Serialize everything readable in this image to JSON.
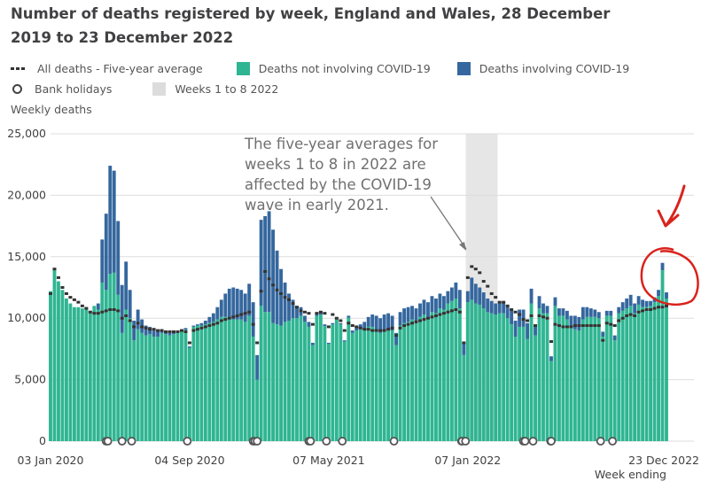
{
  "title": "Number of deaths registered by week, England and Wales, 28 December 2019 to 23 December 2022",
  "legend": {
    "average": "All deaths - Five-year average",
    "non_covid": "Deaths not involving COVID-19",
    "covid": "Deaths involving COVID-19",
    "bank_holidays": "Bank holidays",
    "weeks_band": "Weeks 1 to 8 2022"
  },
  "colors": {
    "non_covid": "#2fb592",
    "covid": "#35679e",
    "average": "#333333",
    "band": "#e6e6e6",
    "annotation_red": "#d9231c"
  },
  "chart_data": {
    "type": "bar",
    "stacked": true,
    "title": "Number of deaths registered by week, England and Wales, 28 December 2019 to 23 December 2022",
    "ylabel": "Weekly deaths",
    "xlabel": "Week ending",
    "ylim": [
      0,
      25000
    ],
    "yticks": [
      0,
      5000,
      10000,
      15000,
      20000,
      25000
    ],
    "ytick_labels": [
      "0",
      "5,000",
      "10,000",
      "15,000",
      "20,000",
      "25,000"
    ],
    "start_week_ending": "2020-01-03",
    "end_week_ending": "2022-12-23",
    "xticks": [
      {
        "label": "03 Jan 2020",
        "week_index": 0
      },
      {
        "label": "04 Sep 2020",
        "week_index": 35
      },
      {
        "label": "07 May 2021",
        "week_index": 70
      },
      {
        "label": "07 Jan 2022",
        "week_index": 105
      },
      {
        "label": "23 Dec 2022",
        "week_index": 155
      }
    ],
    "unit": "thousands of deaths",
    "total_deaths": [
      12.2,
      14.0,
      13.0,
      12.3,
      11.6,
      11.2,
      10.9,
      10.9,
      10.8,
      10.9,
      10.6,
      11.0,
      11.2,
      16.4,
      18.5,
      22.4,
      22.0,
      17.9,
      12.7,
      14.6,
      12.3,
      9.8,
      10.7,
      9.9,
      9.4,
      9.3,
      9.0,
      8.9,
      9.1,
      8.9,
      8.8,
      8.9,
      9.0,
      9.1,
      9.2,
      7.7,
      9.4,
      9.5,
      9.6,
      9.8,
      10.1,
      10.4,
      10.9,
      11.5,
      12.0,
      12.4,
      12.5,
      12.4,
      12.3,
      12.0,
      12.8,
      11.3,
      7.0,
      18.0,
      18.3,
      18.7,
      17.2,
      15.5,
      14.0,
      12.9,
      12.0,
      11.5,
      11.0,
      10.9,
      10.2,
      9.7,
      8.0,
      10.4,
      10.5,
      9.5,
      8.0,
      9.6,
      10.0,
      9.6,
      8.2,
      10.2,
      9.0,
      9.3,
      9.5,
      9.7,
      10.1,
      10.3,
      10.2,
      10.0,
      10.3,
      10.4,
      10.2,
      8.8,
      10.5,
      10.8,
      10.9,
      11.0,
      10.8,
      11.2,
      11.5,
      11.3,
      11.8,
      11.6,
      12.0,
      11.8,
      12.2,
      12.5,
      12.9,
      12.3,
      8.0,
      12.2,
      13.3,
      12.8,
      12.5,
      12.1,
      11.6,
      11.4,
      11.2,
      11.2,
      11.3,
      11.0,
      10.7,
      9.8,
      10.7,
      10.7,
      9.6,
      12.4,
      9.4,
      11.8,
      11.2,
      11.0,
      6.9,
      11.7,
      10.8,
      10.8,
      10.6,
      10.2,
      10.2,
      10.1,
      10.9,
      10.9,
      10.8,
      10.7,
      10.5,
      8.9,
      10.6,
      10.6,
      8.6,
      10.9,
      11.3,
      11.6,
      11.9,
      11.2,
      11.8,
      11.5,
      11.4,
      11.4,
      11.7,
      12.3,
      14.5,
      12.1
    ],
    "series": [
      {
        "name": "Deaths involving COVID-19",
        "values": [
          0,
          0,
          0,
          0,
          0,
          0,
          0,
          0,
          0,
          0,
          0,
          0,
          0.5,
          3.5,
          6.2,
          8.8,
          8.3,
          6.0,
          3.9,
          3.9,
          2.3,
          1.6,
          1.6,
          1.1,
          0.8,
          0.6,
          0.5,
          0.4,
          0.3,
          0.2,
          0.2,
          0.2,
          0.2,
          0.2,
          0.15,
          0.1,
          0.1,
          0.1,
          0.2,
          0.3,
          0.5,
          0.7,
          1.0,
          1.4,
          1.9,
          2.3,
          2.6,
          2.5,
          2.4,
          2.3,
          2.6,
          2.8,
          2.0,
          7.0,
          7.8,
          8.2,
          7.6,
          6.0,
          4.6,
          3.2,
          2.2,
          1.5,
          1.0,
          0.7,
          0.5,
          0.4,
          0.2,
          0.2,
          0.2,
          0.15,
          0.1,
          0.1,
          0.1,
          0.1,
          0.1,
          0.15,
          0.2,
          0.3,
          0.4,
          0.6,
          0.8,
          1.0,
          1.1,
          1.2,
          1.3,
          1.3,
          1.2,
          1.0,
          1.1,
          1.2,
          1.2,
          1.1,
          1.0,
          1.1,
          1.2,
          1.2,
          1.3,
          1.2,
          1.2,
          1.1,
          1.0,
          1.1,
          1.3,
          1.5,
          1.0,
          0.9,
          1.8,
          1.6,
          1.4,
          1.3,
          1.1,
          1.0,
          0.9,
          0.8,
          0.9,
          1.0,
          1.2,
          1.3,
          1.4,
          1.4,
          1.3,
          1.2,
          0.8,
          1.0,
          0.8,
          0.6,
          0.4,
          0.7,
          0.6,
          0.6,
          0.7,
          0.9,
          1.1,
          1.1,
          1.0,
          0.8,
          0.7,
          0.6,
          0.5,
          0.4,
          0.4,
          0.4,
          0.4,
          0.5,
          0.7,
          0.8,
          0.9,
          0.8,
          0.7,
          0.6,
          0.5,
          0.4,
          0.4,
          0.5,
          0.6,
          0.5
        ]
      },
      {
        "name": "All deaths - Five-year average",
        "values": [
          12.0,
          14.0,
          13.3,
          12.5,
          12.0,
          11.7,
          11.5,
          11.3,
          11.0,
          10.8,
          10.5,
          10.4,
          10.4,
          10.5,
          10.6,
          10.7,
          10.7,
          10.6,
          10.0,
          10.2,
          9.8,
          9.3,
          9.6,
          9.3,
          9.2,
          9.1,
          9.1,
          9.0,
          9.0,
          8.9,
          8.9,
          8.9,
          8.9,
          9.0,
          8.9,
          8.0,
          9.0,
          9.1,
          9.2,
          9.3,
          9.4,
          9.5,
          9.6,
          9.8,
          9.9,
          10.0,
          10.1,
          10.2,
          10.3,
          10.4,
          10.5,
          9.5,
          8.0,
          12.2,
          13.8,
          13.2,
          12.7,
          12.3,
          12.0,
          11.7,
          11.5,
          11.2,
          10.9,
          10.6,
          10.5,
          10.4,
          9.5,
          10.4,
          10.5,
          10.4,
          9.3,
          10.3,
          10.0,
          9.8,
          9.0,
          9.6,
          9.4,
          9.3,
          9.2,
          9.1,
          9.1,
          9.0,
          9.0,
          9.0,
          9.0,
          9.1,
          9.2,
          8.6,
          9.2,
          9.4,
          9.5,
          9.6,
          9.7,
          9.8,
          9.9,
          10.0,
          10.1,
          10.2,
          10.3,
          10.4,
          10.5,
          10.6,
          10.7,
          10.5,
          8.0,
          13.3,
          14.2,
          14.0,
          13.7,
          13.0,
          12.6,
          12.0,
          11.7,
          11.3,
          11.3,
          11.0,
          10.7,
          10.5,
          10.3,
          9.9,
          9.8,
          10.2,
          9.4,
          10.2,
          10.1,
          10.0,
          8.1,
          9.5,
          9.4,
          9.3,
          9.3,
          9.3,
          9.4,
          9.4,
          9.4,
          9.4,
          9.4,
          9.4,
          9.4,
          8.2,
          9.6,
          9.5,
          9.4,
          9.8,
          10.0,
          10.2,
          10.3,
          10.2,
          10.5,
          10.6,
          10.7,
          10.7,
          10.8,
          10.9,
          10.9,
          11.0
        ]
      }
    ],
    "bank_holidays": [
      "2020-04-10",
      "2020-04-13",
      "2020-05-08",
      "2020-05-25",
      "2020-08-31",
      "2020-12-25",
      "2020-12-28",
      "2021-01-01",
      "2021-04-02",
      "2021-04-05",
      "2021-05-03",
      "2021-05-31",
      "2021-08-30",
      "2021-12-27",
      "2021-12-28",
      "2022-01-03",
      "2022-04-15",
      "2022-04-18",
      "2022-05-02",
      "2022-06-02",
      "2022-06-03",
      "2022-08-29",
      "2022-09-19"
    ],
    "shaded_band": {
      "label": "Weeks 1 to 8 2022",
      "from_week_index": 105,
      "to_week_index": 112
    },
    "annotation": [
      "The five-year averages for",
      "weeks 1 to 8 in 2022 are",
      "affected by the COVID-19",
      "wave in early 2021."
    ],
    "legend_position": "top"
  }
}
